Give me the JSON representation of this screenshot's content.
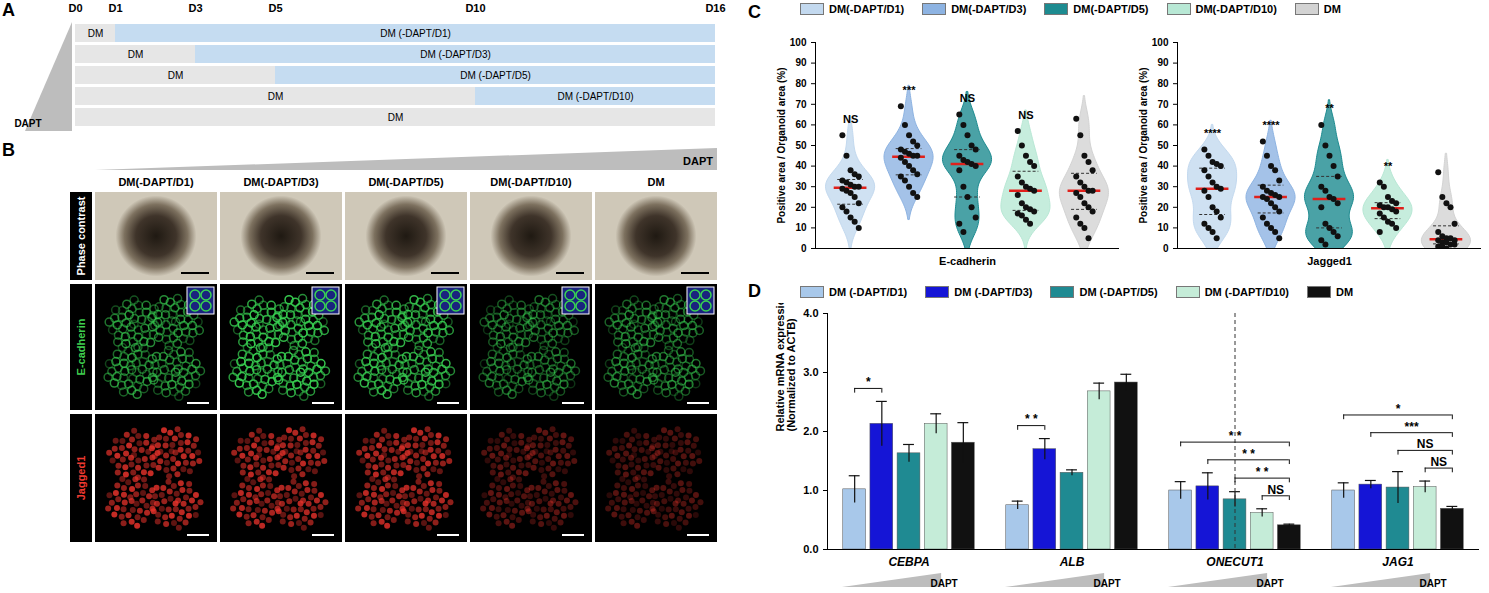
{
  "chart_data": [
    {
      "type": "gantt",
      "title": "A",
      "xlim": [
        0,
        16
      ],
      "xticks": [
        {
          "value": 0,
          "label": "D0"
        },
        {
          "value": 1,
          "label": "D1"
        },
        {
          "value": 3,
          "label": "D3"
        },
        {
          "value": 5,
          "label": "D5"
        },
        {
          "value": 10,
          "label": "D10"
        },
        {
          "value": 16,
          "label": "D16"
        }
      ],
      "annotation": "DAPT",
      "rows": [
        {
          "segments": [
            {
              "label": "DM",
              "start": 0,
              "end": 1,
              "color": "#e6e6e6"
            },
            {
              "label": "DM (-DAPT/D1)",
              "start": 1,
              "end": 16,
              "color": "#c5dcf1"
            }
          ]
        },
        {
          "segments": [
            {
              "label": "DM",
              "start": 0,
              "end": 3,
              "color": "#e6e6e6"
            },
            {
              "label": "DM (-DAPT/D3)",
              "start": 3,
              "end": 16,
              "color": "#c5dcf1"
            }
          ]
        },
        {
          "segments": [
            {
              "label": "DM",
              "start": 0,
              "end": 5,
              "color": "#e6e6e6"
            },
            {
              "label": "DM (-DAPT/D5)",
              "start": 5,
              "end": 16,
              "color": "#c5dcf1"
            }
          ]
        },
        {
          "segments": [
            {
              "label": "DM",
              "start": 0,
              "end": 10,
              "color": "#e6e6e6"
            },
            {
              "label": "DM (-DAPT/D10)",
              "start": 10,
              "end": 16,
              "color": "#c5dcf1"
            }
          ]
        },
        {
          "segments": [
            {
              "label": "DM",
              "start": 0,
              "end": 16,
              "color": "#e6e6e6"
            }
          ]
        }
      ]
    },
    {
      "type": "violin",
      "title": "C",
      "legend": "top",
      "ylabel": "Positive area / Organoid area (%)",
      "xlabel": "E-cadherin",
      "ylim": [
        0,
        100
      ],
      "yticks": [
        0,
        10,
        20,
        30,
        40,
        50,
        60,
        70,
        80,
        90,
        100
      ],
      "series": [
        {
          "name": "DM(-DAPT/D1)",
          "color": "#c3d9ef",
          "significance": "NS",
          "values": [
            55,
            45,
            38,
            36,
            35,
            33,
            32,
            31,
            30,
            30,
            29,
            28,
            27,
            25,
            22,
            20,
            18,
            15,
            13,
            10
          ]
        },
        {
          "name": "DM(-DAPT/D3)",
          "color": "#8db3e2",
          "significance": "***",
          "values": [
            69,
            60,
            55,
            52,
            50,
            48,
            47,
            46,
            45,
            45,
            44,
            42,
            40,
            38,
            36,
            35,
            33,
            30,
            27,
            25
          ]
        },
        {
          "name": "DM(-DAPT/D5)",
          "color": "#1d8b90",
          "significance": "NS",
          "values": [
            65,
            60,
            55,
            50,
            48,
            45,
            43,
            42,
            41,
            40,
            38,
            30,
            25,
            20,
            15,
            12,
            8
          ]
        },
        {
          "name": "DM(-DAPT/D10)",
          "color": "#b8e8d5",
          "significance": "NS",
          "values": [
            57,
            50,
            45,
            42,
            40,
            35,
            32,
            30,
            29,
            28,
            26,
            22,
            20,
            19,
            18,
            17,
            16,
            14,
            12
          ]
        },
        {
          "name": "DM",
          "color": "#d3d3d3",
          "values": [
            63,
            55,
            45,
            42,
            38,
            35,
            32,
            30,
            28,
            28,
            27,
            25,
            22,
            20,
            18,
            15,
            12,
            10,
            5
          ]
        }
      ]
    },
    {
      "type": "violin",
      "ylabel": "Positive area / Organoid area (%)",
      "xlabel": "Jagged1",
      "ylim": [
        0,
        100
      ],
      "yticks": [
        0,
        10,
        20,
        30,
        40,
        50,
        60,
        70,
        80,
        90,
        100
      ],
      "series": [
        {
          "name": "DM(-DAPT/D1)",
          "color": "#c3d9ef",
          "significance": "****",
          "values": [
            48,
            45,
            42,
            41,
            40,
            38,
            35,
            32,
            30,
            29,
            28,
            25,
            20,
            18,
            15,
            12,
            10,
            8,
            5
          ]
        },
        {
          "name": "DM(-DAPT/D3)",
          "color": "#8db3e2",
          "significance": "****",
          "values": [
            52,
            45,
            40,
            38,
            33,
            30,
            28,
            27,
            26,
            25,
            25,
            24,
            22,
            20,
            18,
            15,
            12,
            10,
            8,
            5
          ]
        },
        {
          "name": "DM(-DAPT/D5)",
          "color": "#1d8b90",
          "significance": "**",
          "values": [
            60,
            50,
            45,
            40,
            35,
            30,
            28,
            25,
            24,
            22,
            20,
            12,
            10,
            8,
            6,
            4,
            2
          ]
        },
        {
          "name": "DM(-DAPT/D10)",
          "color": "#b8e8d5",
          "significance": "**",
          "values": [
            32,
            30,
            25,
            23,
            22,
            21,
            20,
            20,
            19,
            18,
            17,
            15,
            13,
            12,
            10,
            8
          ]
        },
        {
          "name": "DM",
          "color": "#d3d3d3",
          "values": [
            37,
            25,
            22,
            20,
            12,
            8,
            6,
            5,
            5,
            4,
            4,
            3,
            3,
            2,
            2,
            1,
            1,
            0
          ]
        }
      ]
    },
    {
      "type": "bar",
      "title": "D",
      "legend": "top",
      "ylabel": "Relative mRNA expression\n(Normalized to ACTB)",
      "ylim": [
        0,
        4
      ],
      "yticks": [
        0,
        1,
        2,
        3,
        4
      ],
      "annotation": "DAPT",
      "categories": [
        "CEBPA",
        "ALB",
        "ONECUT1",
        "JAG1"
      ],
      "series": [
        {
          "name": "DM (-DAPT/D1)",
          "color": "#a8c8ea",
          "values": [
            1.02,
            0.75,
            1.0,
            1.0
          ],
          "errors": [
            0.23,
            0.07,
            0.15,
            0.13
          ]
        },
        {
          "name": "DM (-DAPT/D3)",
          "color": "#1515d6",
          "values": [
            2.13,
            1.7,
            1.07,
            1.1
          ],
          "errors": [
            0.38,
            0.18,
            0.23,
            0.07
          ]
        },
        {
          "name": "DM (-DAPT/D5)",
          "color": "#1f8a92",
          "values": [
            1.63,
            1.3,
            0.85,
            1.05
          ],
          "errors": [
            0.15,
            0.05,
            0.13,
            0.27
          ]
        },
        {
          "name": "DM (-DAPT/D10)",
          "color": "#c5ecd8",
          "values": [
            2.13,
            2.68,
            0.62,
            1.06
          ],
          "errors": [
            0.17,
            0.14,
            0.07,
            0.1
          ]
        },
        {
          "name": "DM",
          "color": "#111111",
          "values": [
            1.81,
            2.83,
            0.41,
            0.69
          ],
          "errors": [
            0.34,
            0.14,
            0.02,
            0.04
          ]
        }
      ],
      "comparisons": [
        {
          "category": "CEBPA",
          "from": "DM (-DAPT/D1)",
          "to": "DM (-DAPT/D3)",
          "label": "*"
        },
        {
          "category": "ALB",
          "from": "DM (-DAPT/D1)",
          "to": "DM (-DAPT/D3)",
          "label": "* *"
        },
        {
          "category": "ONECUT1",
          "from": "DM (-DAPT/D1)",
          "to": "DM",
          "label": "* *"
        },
        {
          "category": "ONECUT1",
          "from": "DM (-DAPT/D3)",
          "to": "DM",
          "label": "* *"
        },
        {
          "category": "ONECUT1",
          "from": "DM (-DAPT/D5)",
          "to": "DM",
          "label": "* *"
        },
        {
          "category": "ONECUT1",
          "from": "DM (-DAPT/D10)",
          "to": "DM",
          "label": "NS"
        },
        {
          "category": "JAG1",
          "from": "DM (-DAPT/D1)",
          "to": "DM",
          "label": "*"
        },
        {
          "category": "JAG1",
          "from": "DM (-DAPT/D3)",
          "to": "DM",
          "label": "***"
        },
        {
          "category": "JAG1",
          "from": "DM (-DAPT/D5)",
          "to": "DM",
          "label": "NS"
        },
        {
          "category": "JAG1",
          "from": "DM (-DAPT/D10)",
          "to": "DM",
          "label": "NS"
        }
      ]
    }
  ],
  "image_panel": {
    "title": "B",
    "annotation": "DAPT",
    "columns": [
      "DM(-DAPT/D1)",
      "DM(-DAPT/D3)",
      "DM(-DAPT/D5)",
      "DM(-DAPT/D10)",
      "DM"
    ],
    "rows": [
      "Phase contrast",
      "E-cadherin",
      "Jagged1"
    ]
  }
}
